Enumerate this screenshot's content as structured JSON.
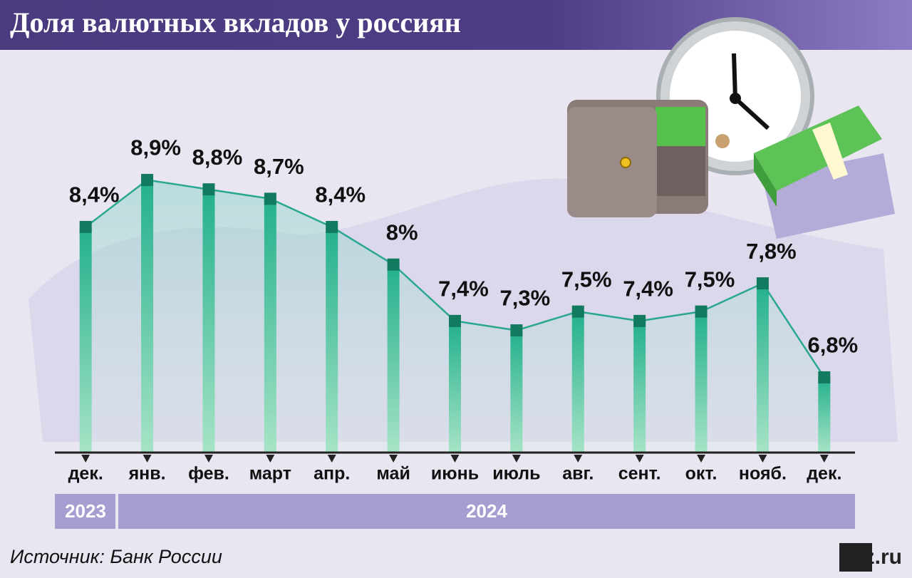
{
  "chart_data": {
    "type": "bar-line",
    "title": "Доля валютных вкладов у россиян",
    "categories": [
      "дек.",
      "янв.",
      "фев.",
      "март",
      "апр.",
      "май",
      "июнь",
      "июль",
      "авг.",
      "сент.",
      "окт.",
      "нояб.",
      "дек."
    ],
    "values": [
      8.4,
      8.9,
      8.8,
      8.7,
      8.4,
      8,
      7.4,
      7.3,
      7.5,
      7.4,
      7.5,
      7.8,
      6.8
    ],
    "value_labels": [
      "8,4%",
      "8,9%",
      "8,8%",
      "8,7%",
      "8,4%",
      "8%",
      "7,4%",
      "7,3%",
      "7,5%",
      "7,4%",
      "7,5%",
      "7,8%",
      "6,8%"
    ],
    "year_groups": [
      "2023",
      "2024"
    ],
    "color": "#2aa88f",
    "ylim": [
      6,
      9.7
    ],
    "source": "Источник: Банк России",
    "logo": "iz.ru"
  }
}
